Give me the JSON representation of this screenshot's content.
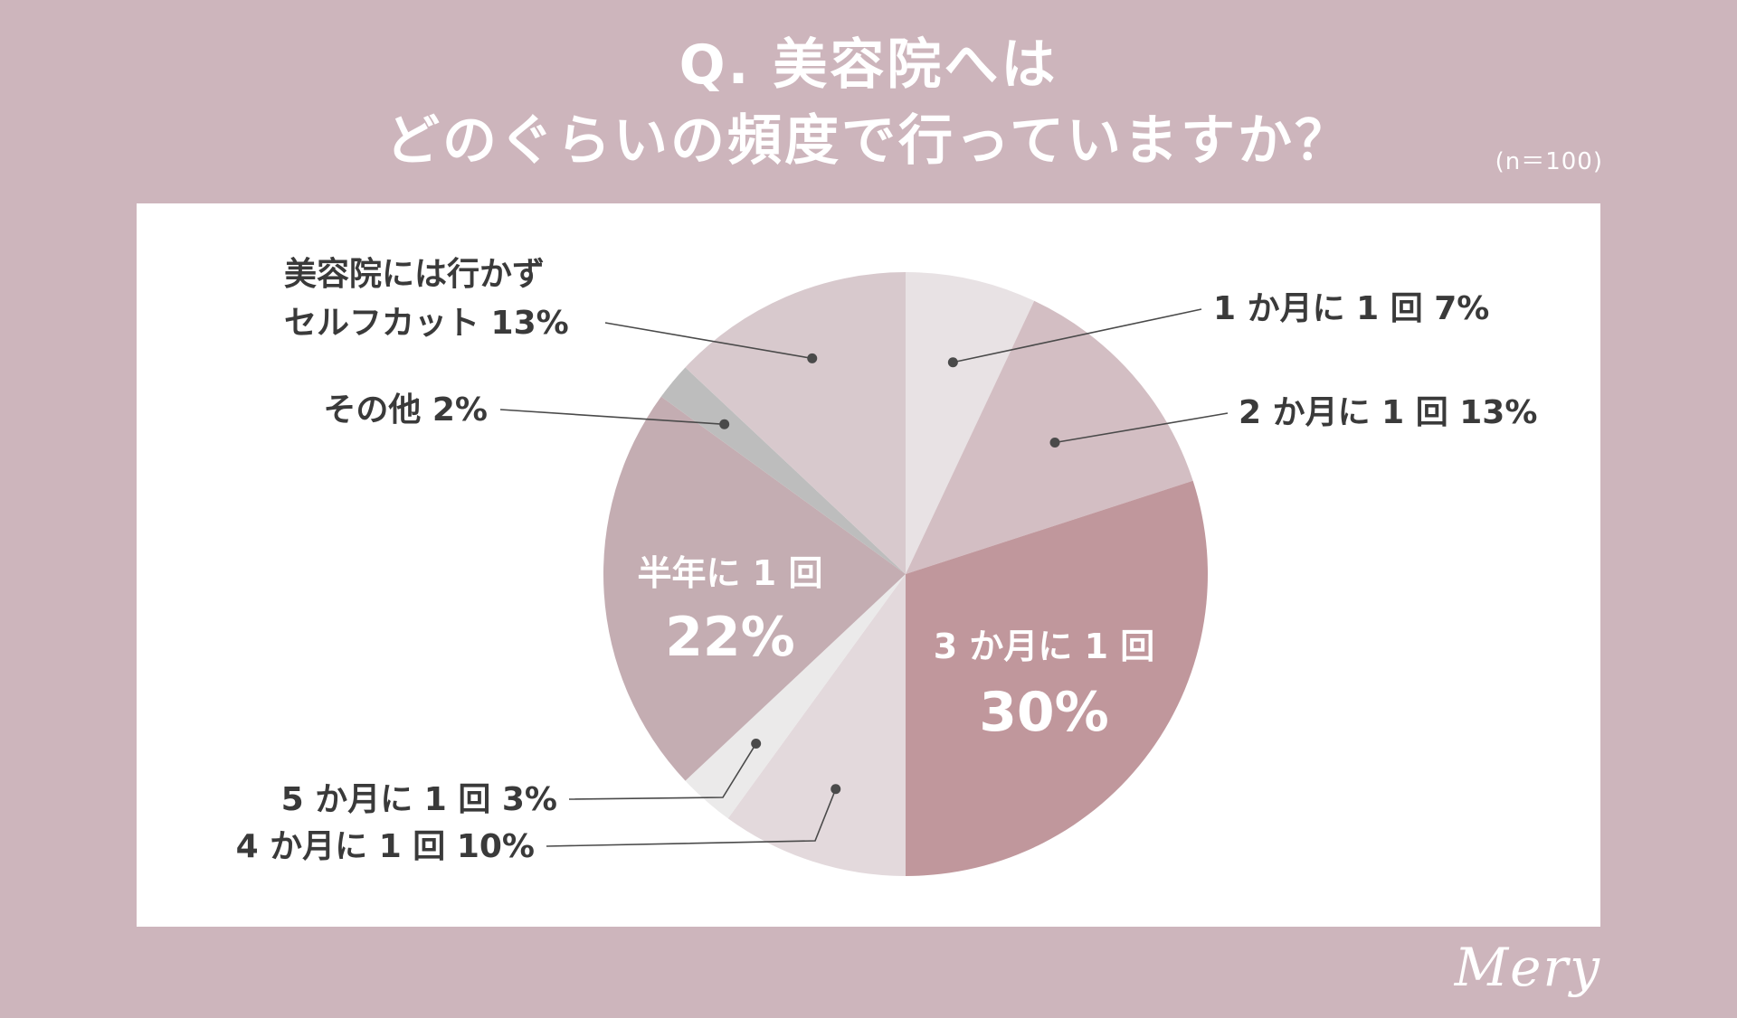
{
  "title": {
    "line1": "Q. 美容院へは",
    "line2": "どのぐらいの頻度で行っていますか？"
  },
  "sample_size": "(n＝100)",
  "logo_text": "Mery",
  "colors": {
    "background": "#cdb5bc",
    "panel": "#ffffff",
    "text": "#3a3a3a"
  },
  "chart_data": {
    "type": "pie",
    "unit": "%",
    "slices": [
      {
        "label": "1 か月に 1 回",
        "value": 7,
        "display": "1 か月に 1 回 7%",
        "color": "#e8e2e4"
      },
      {
        "label": "2 か月に 1 回",
        "value": 13,
        "display": "2 か月に 1 回 13%",
        "color": "#d3bec3"
      },
      {
        "label": "3 か月に 1 回",
        "value": 30,
        "display_label": "3 か月に 1 回",
        "display_value": "30%",
        "color": "#c0979c"
      },
      {
        "label": "4 か月に 1 回",
        "value": 10,
        "display": "4 か月に 1 回 10%",
        "color": "#e3d9dc"
      },
      {
        "label": "5 か月に 1 回",
        "value": 3,
        "display": "5 か月に 1 回 3%",
        "color": "#ebeaea"
      },
      {
        "label": "半年に 1 回",
        "value": 22,
        "display_label": "半年に 1 回",
        "display_value": "22%",
        "color": "#c4adb2"
      },
      {
        "label": "その他",
        "value": 2,
        "display": "その他 2%",
        "color": "#bdbdbd"
      },
      {
        "label": "美容院には行かずセルフカット",
        "value": 13,
        "display_line1": "美容院には行かず",
        "display_line2": "セルフカット 13%",
        "color": "#d8c9cd"
      }
    ]
  }
}
